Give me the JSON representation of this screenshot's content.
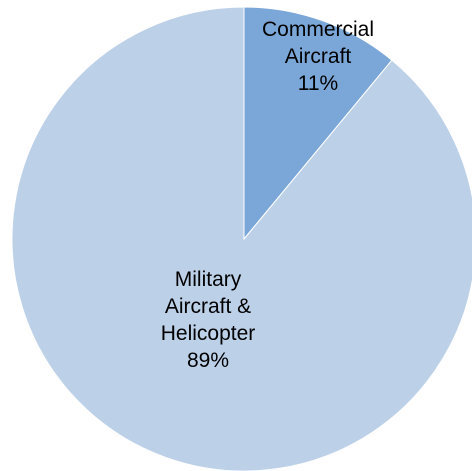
{
  "chart_data": {
    "type": "pie",
    "title": "",
    "slices": [
      {
        "label_lines": [
          "Commercial",
          "Aircraft"
        ],
        "value": 11,
        "value_label": "11%",
        "color": "#7ba7d8"
      },
      {
        "label_lines": [
          "Military",
          "Aircraft &",
          "Helicopter"
        ],
        "value": 89,
        "value_label": "89%",
        "color": "#bcd0e8"
      }
    ],
    "start_angle": "12 o'clock",
    "direction": "clockwise",
    "legend": "none"
  }
}
